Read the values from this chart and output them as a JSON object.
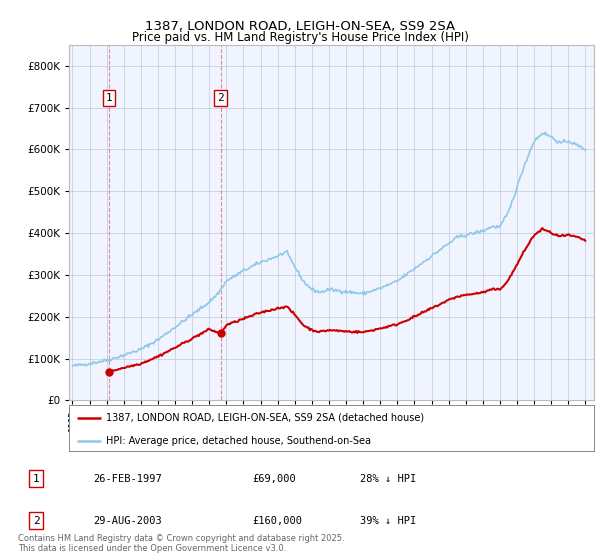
{
  "title_line1": "1387, LONDON ROAD, LEIGH-ON-SEA, SS9 2SA",
  "title_line2": "Price paid vs. HM Land Registry's House Price Index (HPI)",
  "background_color": "#ffffff",
  "plot_bg_color": "#f0f4ff",
  "grid_color": "#c0c8d8",
  "hpi_color": "#90c8e8",
  "price_color": "#cc0000",
  "purchase1": {
    "date_num": 1997.15,
    "price": 69000,
    "label": "1"
  },
  "purchase2": {
    "date_num": 2003.66,
    "price": 160000,
    "label": "2"
  },
  "ylim": [
    0,
    850000
  ],
  "yticks": [
    0,
    100000,
    200000,
    300000,
    400000,
    500000,
    600000,
    700000,
    800000
  ],
  "xlim_start": 1994.8,
  "xlim_end": 2025.5,
  "legend_label_price": "1387, LONDON ROAD, LEIGH-ON-SEA, SS9 2SA (detached house)",
  "legend_label_hpi": "HPI: Average price, detached house, Southend-on-Sea",
  "table_entries": [
    {
      "num": "1",
      "date": "26-FEB-1997",
      "price": "£69,000",
      "hpi": "28% ↓ HPI"
    },
    {
      "num": "2",
      "date": "29-AUG-2003",
      "price": "£160,000",
      "hpi": "39% ↓ HPI"
    }
  ],
  "footer": "Contains HM Land Registry data © Crown copyright and database right 2025.\nThis data is licensed under the Open Government Licence v3.0.",
  "hpi_anchors_x": [
    1995,
    1996,
    1997,
    1998,
    1999,
    2000,
    2001,
    2002,
    2003,
    2003.5,
    2004,
    2005,
    2006,
    2007,
    2007.5,
    2008,
    2008.5,
    2009,
    2009.5,
    2010,
    2011,
    2012,
    2013,
    2014,
    2015,
    2016,
    2017,
    2017.5,
    2018,
    2019,
    2019.5,
    2020,
    2020.5,
    2021,
    2021.5,
    2022,
    2022.5,
    2023,
    2023.5,
    2024,
    2024.5,
    2025
  ],
  "hpi_anchors_y": [
    82000,
    88000,
    96000,
    108000,
    122000,
    145000,
    175000,
    205000,
    235000,
    255000,
    285000,
    310000,
    330000,
    345000,
    355000,
    320000,
    285000,
    265000,
    258000,
    265000,
    260000,
    255000,
    268000,
    285000,
    315000,
    345000,
    375000,
    390000,
    395000,
    405000,
    415000,
    415000,
    450000,
    510000,
    570000,
    620000,
    640000,
    630000,
    615000,
    620000,
    610000,
    600000
  ],
  "price_anchors_x": [
    1997.15,
    1998,
    1999,
    2000,
    2001,
    2002,
    2003,
    2003.66,
    2004,
    2005,
    2006,
    2007,
    2007.5,
    2008,
    2008.5,
    2009,
    2009.5,
    2010,
    2011,
    2012,
    2013,
    2014,
    2015,
    2016,
    2017,
    2017.5,
    2018,
    2019,
    2019.5,
    2020,
    2020.5,
    2021,
    2021.5,
    2022,
    2022.5,
    2023,
    2023.5,
    2024,
    2024.5,
    2025
  ],
  "price_anchors_y": [
    69000,
    78000,
    88000,
    105000,
    126000,
    148000,
    170000,
    160000,
    180000,
    195000,
    210000,
    220000,
    225000,
    205000,
    180000,
    168000,
    164000,
    168000,
    165000,
    163000,
    172000,
    182000,
    200000,
    220000,
    240000,
    248000,
    252000,
    258000,
    265000,
    265000,
    288000,
    325000,
    363000,
    395000,
    410000,
    400000,
    392000,
    395000,
    390000,
    382000
  ]
}
